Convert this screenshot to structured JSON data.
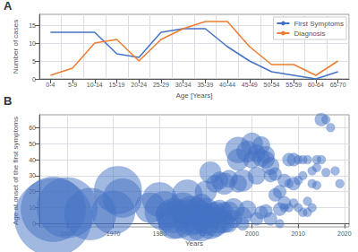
{
  "chart_data": [
    {
      "type": "line",
      "title": "A",
      "categories": [
        "0-4",
        "5-9",
        "10-14",
        "15-19",
        "20-24",
        "25-29",
        "30-34",
        "35-39",
        "40-44",
        "45-49",
        "50-54",
        "55-59",
        "60-64",
        "65-70"
      ],
      "series": [
        {
          "name": "First Symptoms",
          "color": "#4472c4",
          "values": [
            13,
            13,
            13,
            7,
            6,
            13,
            14,
            14,
            9,
            5,
            2,
            1,
            0,
            2
          ]
        },
        {
          "name": "Diagnosis",
          "color": "#ed7d31",
          "values": [
            1,
            3,
            10,
            11,
            5,
            11,
            14,
            16,
            16,
            9,
            4,
            4,
            1,
            5
          ]
        }
      ],
      "xlabel": "Age [Years]",
      "ylabel": "Number of cases",
      "ylim": [
        0,
        18
      ],
      "yticks": [
        0,
        5,
        10,
        15
      ],
      "grid": true,
      "legend": "upper right"
    },
    {
      "type": "scatter",
      "title": "B",
      "x": [
        1957,
        1957,
        1960,
        1965,
        1970,
        1971,
        1972,
        1978,
        1980,
        1981,
        1982,
        1983,
        1983,
        1984,
        1985,
        1986,
        1986,
        1987,
        1987,
        1988,
        1988,
        1989,
        1989,
        1989,
        1990,
        1990,
        1990,
        1991,
        1991,
        1991,
        1992,
        1992,
        1992,
        1993,
        1993,
        1993,
        1994,
        1994,
        1994,
        1995,
        1995,
        1995,
        1996,
        1996,
        1997,
        1997,
        1997,
        1998,
        1998,
        1998,
        1999,
        1999,
        2000,
        2000,
        2001,
        2001,
        2001,
        2002,
        2002,
        2002,
        2003,
        2003,
        2003,
        2004,
        2004,
        2004,
        2005,
        2005,
        2006,
        2006,
        2006,
        2007,
        2007,
        2007,
        2008,
        2008,
        2008,
        2009,
        2009,
        2009,
        2010,
        2010,
        2010,
        2011,
        2011,
        2011,
        2012,
        2012,
        2012,
        2013,
        2013,
        2013,
        2014,
        2014,
        2014,
        2015,
        2015,
        2016,
        2016,
        2017,
        2018,
        2019
      ],
      "values": [
        9,
        4,
        10,
        6,
        7,
        21,
        16,
        10,
        15,
        8,
        6,
        0,
        5,
        3,
        10,
        7,
        18,
        5,
        0,
        8,
        3,
        0,
        6,
        12,
        3,
        8,
        20,
        0,
        5,
        32,
        0,
        7,
        25,
        2,
        8,
        27,
        1,
        8,
        25,
        0,
        7,
        28,
        3,
        9,
        25,
        40,
        46,
        0,
        5,
        27,
        9,
        45,
        40,
        50,
        3,
        30,
        44,
        7,
        41,
        49,
        8,
        40,
        43,
        3,
        30,
        36,
        18,
        31,
        0,
        9,
        20,
        10,
        13,
        27,
        10,
        25,
        40,
        13,
        25,
        40,
        10,
        27,
        40,
        7,
        30,
        40,
        7,
        14,
        40,
        10,
        25,
        33,
        24,
        35,
        40,
        65,
        40,
        32,
        65,
        60,
        33,
        25
      ],
      "delays": [
        15,
        18,
        14,
        12,
        10,
        11,
        9,
        7,
        8,
        9,
        6,
        7,
        8,
        9,
        7,
        6,
        7,
        9,
        8,
        6,
        7,
        8,
        6,
        5,
        7,
        6,
        5,
        7,
        6,
        5,
        6,
        5,
        4,
        6,
        5,
        4,
        5,
        4,
        5,
        4,
        5,
        4,
        4,
        5,
        4,
        5,
        6,
        3,
        4,
        5,
        4,
        5,
        4,
        5,
        3,
        4,
        4,
        3,
        4,
        4,
        3,
        4,
        4,
        3,
        3,
        4,
        3,
        3,
        2,
        3,
        3,
        2,
        3,
        3,
        2,
        2,
        3,
        2,
        3,
        3,
        2,
        2,
        2,
        2,
        2,
        2,
        2,
        2,
        2,
        2,
        2,
        2,
        2,
        2,
        2,
        3,
        2,
        2,
        2,
        2,
        2,
        2
      ],
      "color": "#4472c4",
      "xlabel": "Years",
      "ylabel": "Age at onset of the first symptoms",
      "xlim": [
        1954,
        2021
      ],
      "xticks": [
        1960,
        1970,
        1980,
        1990,
        2000,
        2010,
        2020
      ],
      "ylim": [
        -2,
        68
      ],
      "yticks": [
        0,
        10,
        20,
        30,
        40,
        50,
        60
      ],
      "grid": true
    }
  ]
}
